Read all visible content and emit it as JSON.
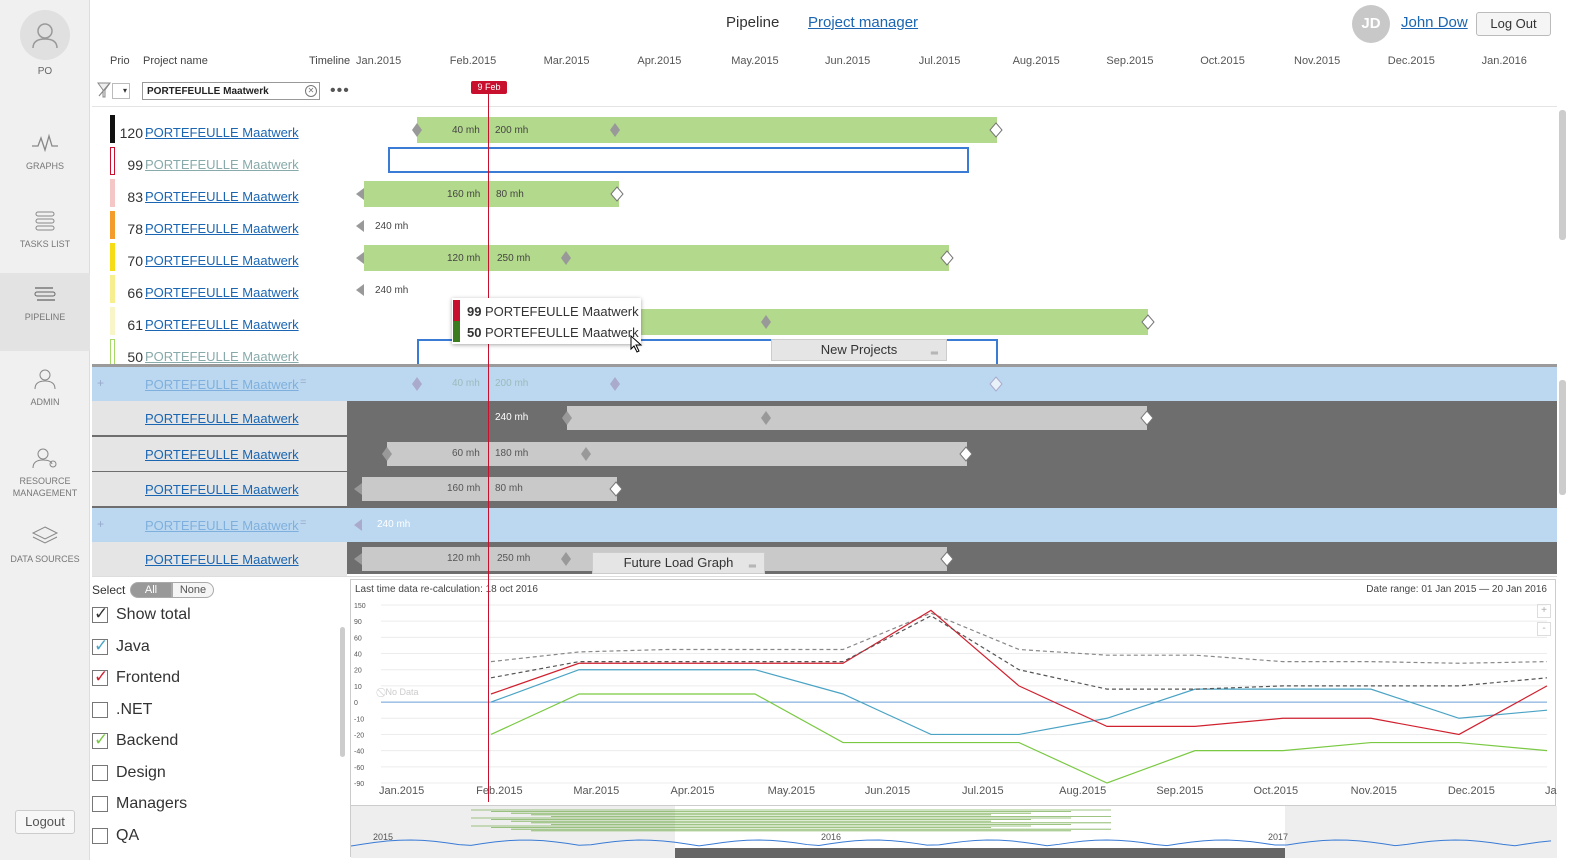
{
  "sidebar": {
    "user_label": "PO",
    "items": [
      {
        "label": "GRAPHS",
        "icon": "graphs-icon"
      },
      {
        "label": "TASKS LIST",
        "icon": "tasks-list-icon"
      },
      {
        "label": "PIPELINE",
        "icon": "pipeline-icon"
      },
      {
        "label": "ADMIN",
        "icon": "admin-icon"
      },
      {
        "label": "RESOURCE MANAGEMENT",
        "icon": "resource-management-icon"
      },
      {
        "label": "DATA SOURCES",
        "icon": "data-sources-icon"
      }
    ],
    "logout_label": "Logout"
  },
  "header": {
    "tabs": [
      {
        "label": "Pipeline",
        "active": false
      },
      {
        "label": "Project manager",
        "active": true
      }
    ],
    "user_initials": "JD",
    "user_name": "John Dow",
    "logout_label": "Log Out"
  },
  "table": {
    "col_prio": "Prio",
    "col_project": "Project name",
    "col_timeline": "Timeline",
    "months": [
      "Jan.2015",
      "Feb.2015",
      "Mar.2015",
      "Apr.2015",
      "May.2015",
      "Jun.2015",
      "Jul.2015",
      "Aug.2015",
      "Sep.2015",
      "Oct.2015",
      "Nov.2015",
      "Dec.2015",
      "Jan.2016"
    ],
    "filter_value": "PORTEFEULLE Maatwerk",
    "filter_select_value": "▾",
    "today_label": "9 Feb"
  },
  "projects": [
    {
      "prio": "120",
      "name": "PORTEFEULLE Maatwerk",
      "color": "#111111",
      "labels": [
        "40 mh",
        "200 mh"
      ]
    },
    {
      "prio": "99",
      "name": "PORTEFEULLE Maatwerk",
      "color": "#c8102e",
      "labels": []
    },
    {
      "prio": "83",
      "name": "PORTEFEULLE Maatwerk",
      "color": "#f4c6c6",
      "labels": [
        "160 mh",
        "80 mh"
      ]
    },
    {
      "prio": "78",
      "name": "PORTEFEULLE Maatwerk",
      "color": "#f39c2b",
      "labels": [
        "240 mh"
      ]
    },
    {
      "prio": "70",
      "name": "PORTEFEULLE Maatwerk",
      "color": "#f5dc17",
      "labels": [
        "120 mh",
        "250 mh"
      ]
    },
    {
      "prio": "66",
      "name": "PORTEFEULLE Maatwerk",
      "color": "#f7ef8f",
      "labels": [
        "240 mh"
      ]
    },
    {
      "prio": "61",
      "name": "PORTEFEULLE Maatwerk",
      "color": "#f8f5c9",
      "labels": []
    },
    {
      "prio": "50",
      "name": "PORTEFEULLE Maatwerk",
      "color": "#a6d96a",
      "labels": []
    }
  ],
  "tooltip": [
    {
      "prio": "99",
      "name": "PORTEFEULLE Maatwerk",
      "color": "#c8102e"
    },
    {
      "prio": "50",
      "name": "PORTEFEULLE Maatwerk",
      "color": "#3b7d1e"
    }
  ],
  "new_projects": {
    "title": "New Projects",
    "rows": [
      {
        "name": "PORTEFEULLE Maatwerk",
        "labels": [
          "40 mh",
          "200 mh"
        ],
        "highlight": true
      },
      {
        "name": "PORTEFEULLE Maatwerk",
        "labels": [
          "240 mh"
        ],
        "highlight": false
      },
      {
        "name": "PORTEFEULLE Maatwerk",
        "labels": [
          "60 mh",
          "180 mh"
        ],
        "highlight": false
      },
      {
        "name": "PORTEFEULLE Maatwerk",
        "labels": [
          "160 mh",
          "80 mh"
        ],
        "highlight": false
      },
      {
        "name": "PORTEFEULLE Maatwerk",
        "labels": [
          "240 mh"
        ],
        "highlight": true
      },
      {
        "name": "PORTEFEULLE Maatwerk",
        "labels": [
          "120 mh",
          "250 mh"
        ],
        "highlight": false
      }
    ]
  },
  "future_load": {
    "title": "Future Load Graph",
    "select_label": "Select",
    "all_label": "All",
    "none_label": "None",
    "series": [
      {
        "label": "Show total",
        "checked": true,
        "check_color": "#333333"
      },
      {
        "label": "Java",
        "checked": true,
        "check_color": "#4aa3c4"
      },
      {
        "label": "Frontend",
        "checked": true,
        "check_color": "#d0212f"
      },
      {
        "label": ".NET",
        "checked": false,
        "check_color": "#333333"
      },
      {
        "label": "Backend",
        "checked": true,
        "check_color": "#7ac943"
      },
      {
        "label": "Design",
        "checked": false,
        "check_color": "#333333"
      },
      {
        "label": "Managers",
        "checked": false,
        "check_color": "#333333"
      },
      {
        "label": "QA",
        "checked": false,
        "check_color": "#333333"
      }
    ],
    "recalc_text": "Last time data re-calculation: 18 oct 2016",
    "date_range_text": "Date range:  01 Jan 2015 — 20 Jan 2016",
    "no_data_text": "No Data",
    "zoom_in": "+",
    "zoom_out": "-",
    "nav_years": [
      "2015",
      "2016",
      "2017"
    ]
  },
  "chart_data": {
    "type": "line",
    "x": [
      "Jan.2015",
      "Feb.2015",
      "Mar.2015",
      "Apr.2015",
      "May.2015",
      "Jun.2015",
      "Jul.2015",
      "Aug.2015",
      "Sep.2015",
      "Oct.2015",
      "Nov.2015",
      "Dec.2015",
      "Jan.2016"
    ],
    "y_ticks": [
      "150",
      "90",
      "60",
      "40",
      "20",
      "10",
      "0",
      "-10",
      "-20",
      "-40",
      "-60",
      "-90"
    ],
    "ylim": [
      -90,
      150
    ],
    "series": [
      {
        "name": "Show total",
        "color": "#888888",
        "values": [
          30,
          42,
          45,
          45,
          45,
          120,
          45,
          38,
          38,
          30,
          30,
          28,
          30
        ]
      },
      {
        "name": "Java",
        "color": "#4aa3c4",
        "values": [
          0,
          20,
          20,
          20,
          5,
          -20,
          -20,
          -10,
          8,
          8,
          8,
          -10,
          -5
        ]
      },
      {
        "name": "Frontend",
        "color": "#d0212f",
        "values": [
          5,
          28,
          28,
          28,
          28,
          130,
          10,
          -15,
          -15,
          -10,
          -10,
          -20,
          10
        ]
      },
      {
        "name": "Backend",
        "color": "#7ac943",
        "values": [
          -20,
          5,
          5,
          5,
          -30,
          -30,
          -30,
          -90,
          -40,
          -40,
          -30,
          -30,
          -40
        ]
      },
      {
        "name": "Total (dashed dark)",
        "color": "#555555",
        "values": [
          15,
          30,
          30,
          30,
          30,
          110,
          20,
          8,
          8,
          10,
          10,
          10,
          15
        ]
      }
    ],
    "grid": true
  },
  "colors": {
    "accent": "#1a66b3",
    "today": "#c8102e",
    "bar_green": "#b3d98c",
    "bar_grey": "#c9c9c9",
    "outline_blue": "#3a7bd5"
  }
}
